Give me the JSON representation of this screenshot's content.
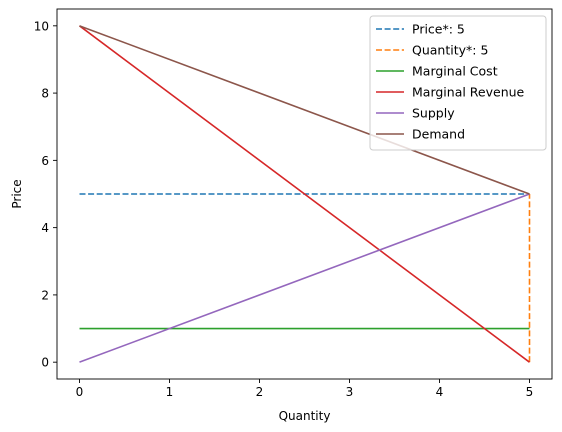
{
  "chart_data": {
    "type": "line",
    "xlabel": "Quantity",
    "ylabel": "Price",
    "xlim": [
      -0.25,
      5.25
    ],
    "ylim": [
      -0.5,
      10.5
    ],
    "xticks": [
      0,
      1,
      2,
      3,
      4,
      5
    ],
    "yticks": [
      0,
      2,
      4,
      6,
      8,
      10
    ],
    "grid": false,
    "legend_position": "top-right",
    "series": [
      {
        "name": "Price*: 5",
        "color": "#1f77b4",
        "dashed": true,
        "x": [
          0,
          5
        ],
        "y": [
          5,
          5
        ]
      },
      {
        "name": "Quantity*: 5",
        "color": "#ff7f0e",
        "dashed": true,
        "x": [
          5,
          5
        ],
        "y": [
          0,
          5
        ]
      },
      {
        "name": "Marginal Cost",
        "color": "#2ca02c",
        "dashed": false,
        "x": [
          0,
          5
        ],
        "y": [
          1,
          1
        ]
      },
      {
        "name": "Marginal Revenue",
        "color": "#d62728",
        "dashed": false,
        "x": [
          0,
          5
        ],
        "y": [
          10,
          0
        ]
      },
      {
        "name": "Supply",
        "color": "#9467bd",
        "dashed": false,
        "x": [
          0,
          5
        ],
        "y": [
          0,
          5
        ]
      },
      {
        "name": "Demand",
        "color": "#8c564b",
        "dashed": false,
        "x": [
          0,
          5
        ],
        "y": [
          10,
          5
        ]
      }
    ]
  }
}
